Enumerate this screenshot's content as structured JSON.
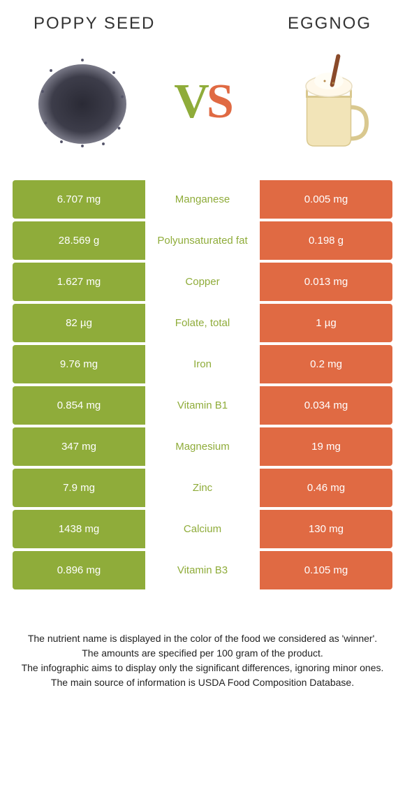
{
  "colors": {
    "left": "#8fac3a",
    "right": "#e06a43",
    "left_dim": "#a8c159",
    "right_dim": "#e88a6a"
  },
  "header": {
    "left_title": "Poppy seed",
    "right_title": "Eggnog"
  },
  "vs": {
    "v": "V",
    "s": "S"
  },
  "rows": [
    {
      "left": "6.707 mg",
      "mid": "Manganese",
      "right": "0.005 mg",
      "winner": "left"
    },
    {
      "left": "28.569 g",
      "mid": "Polyunsaturated fat",
      "right": "0.198 g",
      "winner": "left"
    },
    {
      "left": "1.627 mg",
      "mid": "Copper",
      "right": "0.013 mg",
      "winner": "left"
    },
    {
      "left": "82 µg",
      "mid": "Folate, total",
      "right": "1 µg",
      "winner": "left"
    },
    {
      "left": "9.76 mg",
      "mid": "Iron",
      "right": "0.2 mg",
      "winner": "left"
    },
    {
      "left": "0.854 mg",
      "mid": "Vitamin B1",
      "right": "0.034 mg",
      "winner": "left"
    },
    {
      "left": "347 mg",
      "mid": "Magnesium",
      "right": "19 mg",
      "winner": "left"
    },
    {
      "left": "7.9 mg",
      "mid": "Zinc",
      "right": "0.46 mg",
      "winner": "left"
    },
    {
      "left": "1438 mg",
      "mid": "Calcium",
      "right": "130 mg",
      "winner": "left"
    },
    {
      "left": "0.896 mg",
      "mid": "Vitamin B3",
      "right": "0.105 mg",
      "winner": "left"
    }
  ],
  "footer": {
    "line1": "The nutrient name is displayed in the color of the food we considered as 'winner'.",
    "line2": "The amounts are specified per 100 gram of the product.",
    "line3": "The infographic aims to display only the significant differences, ignoring minor ones.",
    "line4": "The main source of information is USDA Food Composition Database."
  }
}
